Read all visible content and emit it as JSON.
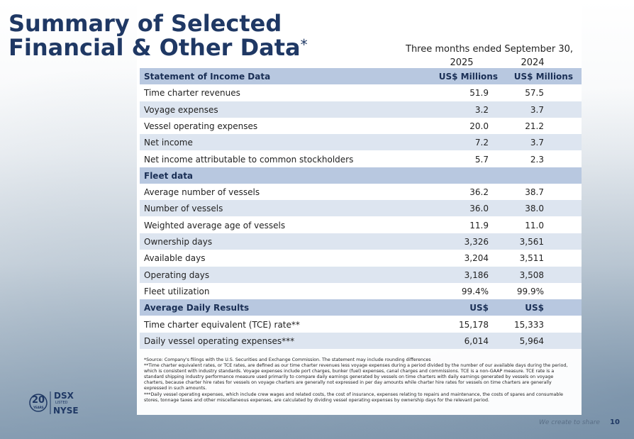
{
  "header": {
    "title_line1": "Summary of Selected",
    "title_line2": "Financial & Other Data",
    "title_mark": "*",
    "period": "Three months ended September 30,",
    "years": [
      "2025",
      "2024"
    ]
  },
  "table": {
    "sections": [
      {
        "header": [
          "Statement of Income Data",
          "US$ Millions",
          "US$ Millions"
        ],
        "rows": [
          [
            "Time charter revenues",
            "51.9",
            "57.5"
          ],
          [
            "Voyage expenses",
            "3.2",
            "3.7"
          ],
          [
            "Vessel operating expenses",
            "20.0",
            "21.2"
          ],
          [
            "Net income",
            "7.2",
            "3.7"
          ],
          [
            "Net income attributable to common stockholders",
            "5.7",
            "2.3"
          ]
        ]
      },
      {
        "header": [
          "Fleet data"
        ],
        "rows": [
          [
            "Average number of vessels",
            "36.2",
            "38.7"
          ],
          [
            "Number of vessels",
            "36.0",
            "38.0"
          ],
          [
            "Weighted average age of vessels",
            "11.9",
            "11.0"
          ],
          [
            "Ownership days",
            "3,326",
            "3,561"
          ],
          [
            "Available days",
            "3,204",
            "3,511"
          ],
          [
            "Operating days",
            "3,186",
            "3,508"
          ],
          [
            "Fleet utilization",
            "99.4%",
            "99.9%"
          ]
        ]
      },
      {
        "header": [
          "Average Daily Results",
          "US$",
          "US$"
        ],
        "rows": [
          [
            "Time charter equivalent (TCE) rate**",
            "15,178",
            "15,333"
          ],
          [
            "Daily vessel operating expenses***",
            "6,014",
            "5,964"
          ]
        ]
      }
    ]
  },
  "footnotes": [
    "*Source: Company's filings with the U.S. Securities and Exchange Commission. The statement may include rounding differences",
    "**Time charter equivalent rates, or TCE rates, are defined as our time charter revenues less voyage expenses during a period divided by the number of our available days during the period, which is consistent with industry standards.  Voyage expenses include port charges, bunker (fuel) expenses, canal charges and commissions.  TCE is a non-GAAP measure.  TCE rate is a standard shipping industry performance measure used primarily to compare daily earnings generated by vessels on time charters with daily earnings generated by vessels on voyage charters, because charter hire rates for vessels on voyage charters are generally not expressed in per day amounts while charter hire rates for vessels on time charters are generally expressed in such amounts.",
    "***Daily vessel operating expenses, which include crew wages and related costs, the cost of insurance, expenses relating to repairs and maintenance, the costs of spares and consumable stores, tonnage taxes and other miscellaneous expenses, are calculated by dividing vessel operating expenses by ownership days for the relevant period."
  ],
  "logo": {
    "years_number": "20",
    "years_word": "YEARS",
    "ticker": "DSX",
    "listed": "LISTED",
    "exchange": "NYSE"
  },
  "footer": {
    "tagline": "We create to share",
    "page": "10"
  }
}
